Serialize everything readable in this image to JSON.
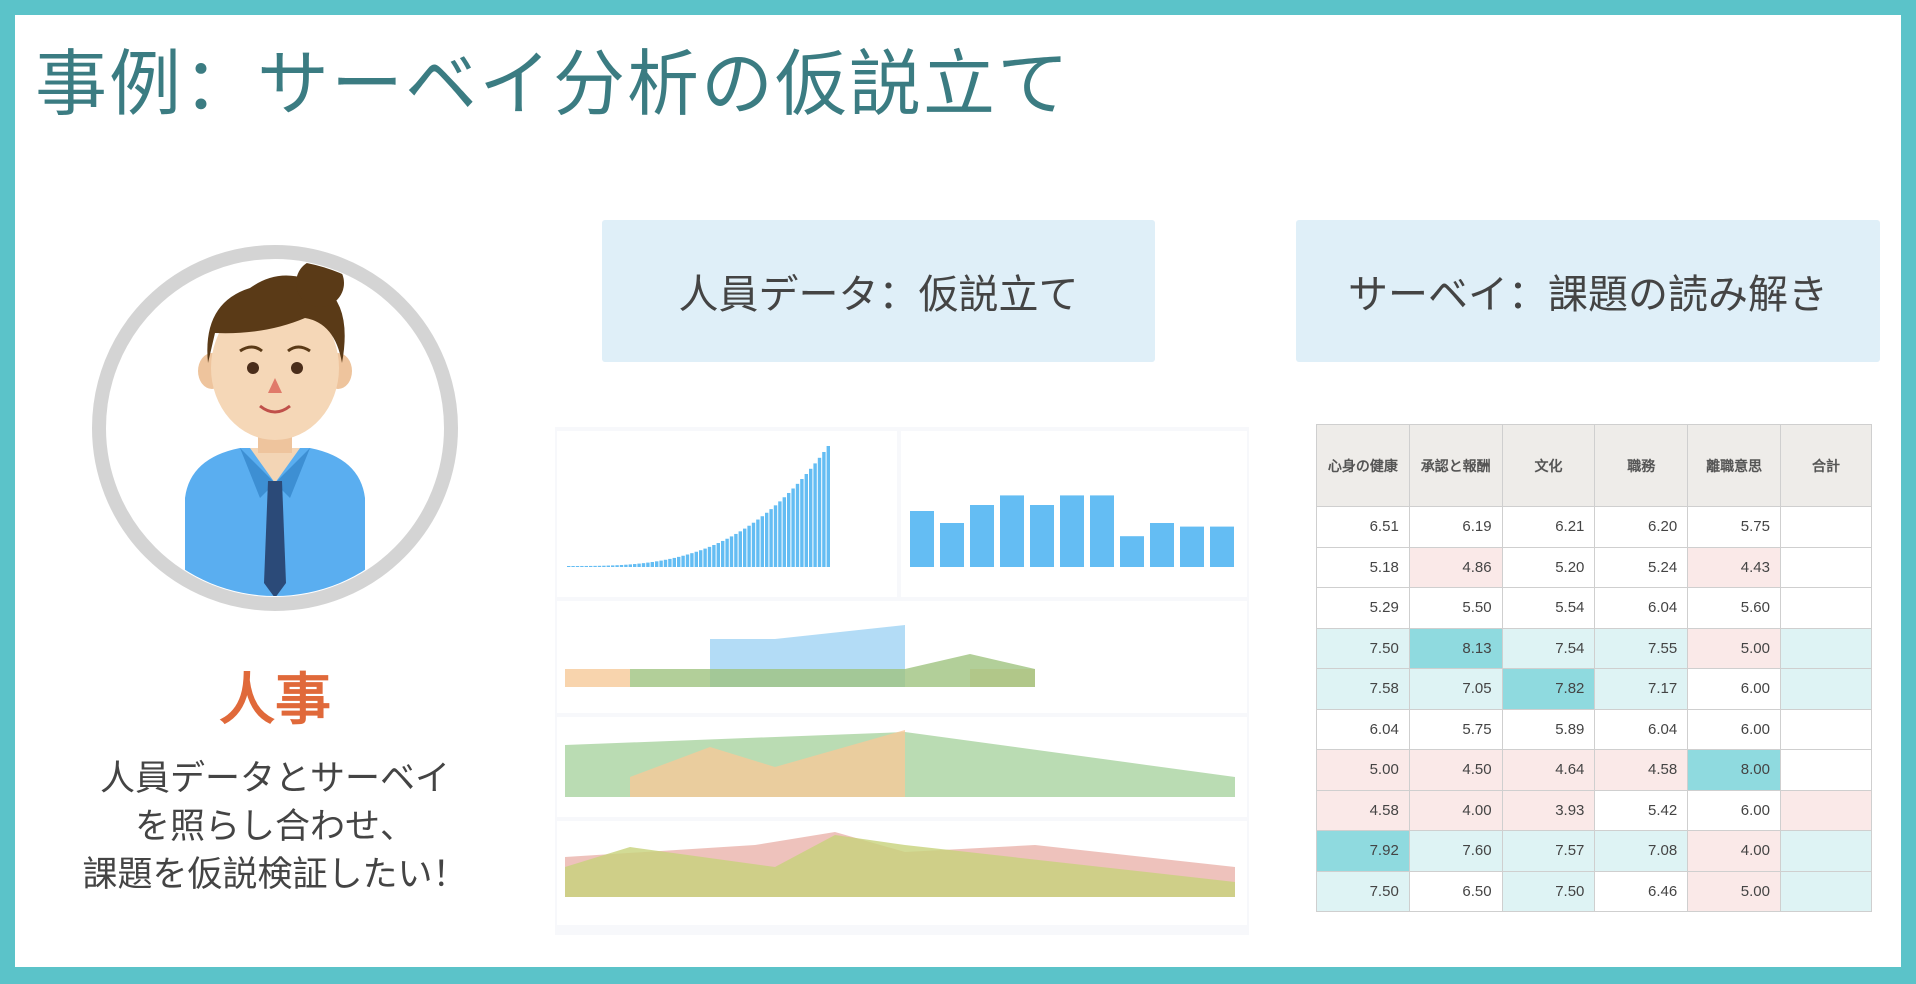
{
  "title": "事例：サーベイ分析の仮説立て",
  "persona": {
    "role": "人事",
    "description_lines": [
      "人員データとサーベイ",
      "を照らし合わせ、",
      "課題を仮説検証したい！"
    ]
  },
  "boxes": {
    "left": "人員データ：仮説立て",
    "right": "サーベイ：課題の読み解き"
  },
  "colors": {
    "frame": "#5bc3c9",
    "title": "#3b7c82",
    "role": "#e0693a",
    "high": "#8fdadf",
    "positive": "#def3f4",
    "low": "#fae9e8"
  },
  "survey_table": {
    "headers": [
      "心身の健康",
      "承認と報酬",
      "文化",
      "職務",
      "離職意思",
      "合計"
    ],
    "rows": [
      {
        "values": [
          "6.51",
          "6.19",
          "6.21",
          "6.20",
          "5.75",
          ""
        ],
        "styles": [
          "",
          "",
          "",
          "",
          "",
          ""
        ]
      },
      {
        "values": [
          "5.18",
          "4.86",
          "5.20",
          "5.24",
          "4.43",
          ""
        ],
        "styles": [
          "",
          "lo",
          "",
          "",
          "lo",
          ""
        ]
      },
      {
        "values": [
          "5.29",
          "5.50",
          "5.54",
          "6.04",
          "5.60",
          ""
        ],
        "styles": [
          "",
          "",
          "",
          "",
          "",
          ""
        ]
      },
      {
        "values": [
          "7.50",
          "8.13",
          "7.54",
          "7.55",
          "5.00",
          ""
        ],
        "styles": [
          "pos",
          "hi",
          "pos",
          "pos",
          "lo",
          "pos"
        ]
      },
      {
        "values": [
          "7.58",
          "7.05",
          "7.82",
          "7.17",
          "6.00",
          ""
        ],
        "styles": [
          "pos",
          "pos",
          "hi",
          "pos",
          "",
          "pos"
        ]
      },
      {
        "values": [
          "6.04",
          "5.75",
          "5.89",
          "6.04",
          "6.00",
          ""
        ],
        "styles": [
          "",
          "",
          "",
          "",
          "",
          ""
        ]
      },
      {
        "values": [
          "5.00",
          "4.50",
          "4.64",
          "4.58",
          "8.00",
          ""
        ],
        "styles": [
          "lo",
          "lo",
          "lo",
          "lo",
          "hi",
          ""
        ]
      },
      {
        "values": [
          "4.58",
          "4.00",
          "3.93",
          "5.42",
          "6.00",
          ""
        ],
        "styles": [
          "lo",
          "lo",
          "lo",
          "",
          "",
          "lo"
        ]
      },
      {
        "values": [
          "7.92",
          "7.60",
          "7.57",
          "7.08",
          "4.00",
          ""
        ],
        "styles": [
          "hi",
          "pos",
          "pos",
          "pos",
          "lo",
          "pos"
        ]
      },
      {
        "values": [
          "7.50",
          "6.50",
          "7.50",
          "6.46",
          "5.00",
          ""
        ],
        "styles": [
          "pos",
          "",
          "pos",
          "",
          "lo",
          "pos"
        ]
      }
    ]
  }
}
